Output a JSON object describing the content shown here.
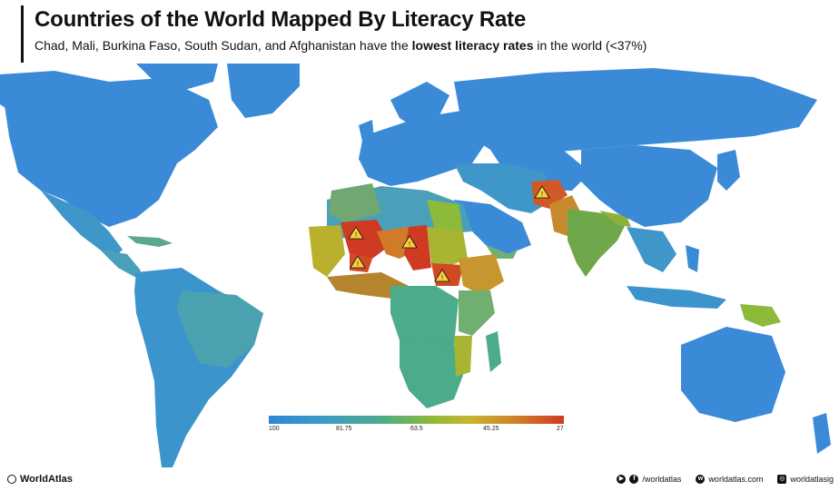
{
  "header": {
    "title": "Countries of the World Mapped By Literacy Rate",
    "subtitle_parts": {
      "countries": "Chad, Mali, Burkina Faso, South Sudan,",
      "and": " and ",
      "afghanistan": "Afghanistan",
      "middle": " have the ",
      "lowest": "lowest literacy rates",
      "tail": " in the world (<37%)"
    }
  },
  "legend": {
    "ticks": [
      "100",
      "81.75",
      "63.5",
      "45.25",
      "27"
    ]
  },
  "footer": {
    "brand": "WorldAtlas",
    "social_handle": "/worldatlas",
    "website": "worldatlas.com",
    "instagram": "worldatlasig"
  },
  "colors": {
    "ocean": "#ffffff",
    "high": "#2e86d8",
    "mid_high": "#4cab8a",
    "mid": "#8cba3a",
    "mid_low": "#c8b62e",
    "low": "#d07a2a",
    "lowest": "#cf3a22"
  },
  "warnings": {
    "icon": "warning-triangle-icon",
    "countries": [
      "Mali",
      "Chad",
      "Burkina Faso",
      "South Sudan",
      "Afghanistan"
    ]
  }
}
